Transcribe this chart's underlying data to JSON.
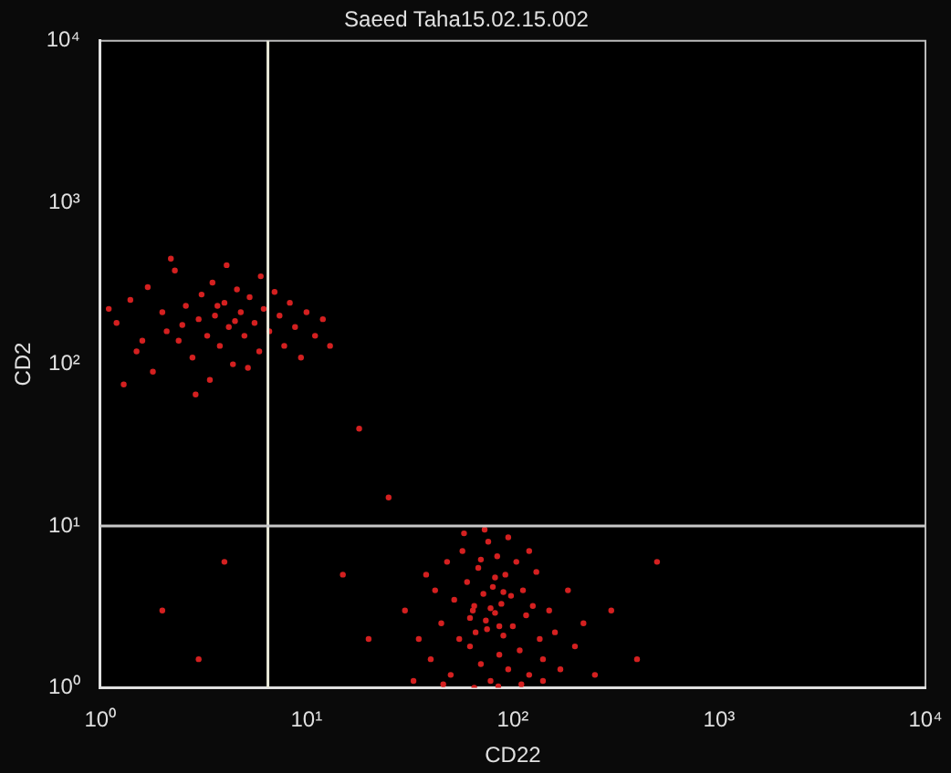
{
  "chart_data": {
    "type": "scatter",
    "title": "Saeed Taha15.02.15.002",
    "xlabel": "CD22",
    "ylabel": "CD2",
    "log": "xy",
    "grid": false,
    "marker": "circle",
    "xlim": [
      1,
      10000
    ],
    "ylim": [
      1,
      10000
    ],
    "xticks": [
      {
        "value": 1,
        "label": "10⁰"
      },
      {
        "value": 10,
        "label": "10¹"
      },
      {
        "value": 100,
        "label": "10²"
      },
      {
        "value": 1000,
        "label": "10³"
      },
      {
        "value": 10000,
        "label": "10⁴"
      }
    ],
    "yticks": [
      {
        "value": 1,
        "label": "10⁰"
      },
      {
        "value": 10,
        "label": "10¹"
      },
      {
        "value": 100,
        "label": "10²"
      },
      {
        "value": 1000,
        "label": "10³"
      },
      {
        "value": 10000,
        "label": "10⁴"
      }
    ],
    "ref_lines": [
      {
        "axis": "x",
        "value": 6.5,
        "color": "#e8e8d8"
      },
      {
        "axis": "y",
        "value": 10,
        "color": "#c8c8c8"
      }
    ],
    "series": [
      {
        "color": "#d42020",
        "x": [
          1.2,
          1.4,
          1.5,
          1.7,
          1.8,
          2.0,
          2.1,
          2.3,
          2.4,
          2.6,
          2.8,
          3.0,
          3.1,
          3.3,
          3.5,
          3.6,
          3.8,
          4.0,
          4.2,
          4.4,
          4.6,
          4.8,
          5.0,
          5.3,
          5.6,
          5.9,
          6.2,
          6.6,
          7.0,
          7.4,
          7.8,
          8.3,
          8.8,
          9.4,
          10,
          11,
          12,
          13,
          1.3,
          2.2,
          3.4,
          4.1,
          2.9,
          1.6,
          5.2,
          6.0,
          1.1,
          3.7,
          2.5,
          4.5,
          30,
          35,
          38,
          40,
          42,
          45,
          48,
          50,
          52,
          55,
          57,
          60,
          62,
          64,
          66,
          68,
          70,
          72,
          74,
          76,
          78,
          80,
          82,
          84,
          86,
          88,
          90,
          92,
          95,
          98,
          100,
          104,
          108,
          112,
          116,
          120,
          125,
          130,
          135,
          140,
          150,
          160,
          170,
          185,
          200,
          220,
          250,
          33,
          46,
          65,
          85,
          110,
          140,
          58,
          73,
          95,
          120,
          65,
          75,
          82,
          70,
          90,
          62,
          78,
          86,
          2,
          4,
          15,
          20,
          300,
          400,
          25,
          18,
          500,
          3
        ],
        "values": [
          180,
          250,
          120,
          300,
          90,
          210,
          160,
          380,
          140,
          230,
          110,
          190,
          270,
          150,
          320,
          200,
          130,
          240,
          170,
          100,
          290,
          210,
          150,
          260,
          180,
          120,
          220,
          160,
          280,
          200,
          130,
          240,
          170,
          110,
          210,
          150,
          190,
          130,
          75,
          450,
          80,
          410,
          65,
          140,
          95,
          350,
          220,
          230,
          175,
          185,
          3,
          2,
          5,
          1.5,
          4,
          2.5,
          6,
          1.2,
          3.5,
          2,
          7,
          4.5,
          1.8,
          3,
          2.2,
          5.5,
          1.4,
          3.8,
          2.6,
          8,
          1.1,
          4.2,
          2.9,
          6.5,
          1.6,
          3.3,
          2.1,
          5,
          1.3,
          3.7,
          2.4,
          6,
          1.7,
          4,
          2.8,
          1.2,
          3.2,
          5.2,
          2,
          1.5,
          3,
          2.2,
          1.3,
          4,
          1.8,
          2.5,
          1.2,
          1.1,
          1.05,
          1.0,
          1.02,
          1.05,
          1.1,
          9,
          9.5,
          8.5,
          7,
          3.2,
          2.3,
          4.8,
          6.2,
          3.9,
          2.7,
          3.1,
          2.4,
          3,
          6,
          5,
          2,
          3,
          1.5,
          15,
          40,
          6,
          1.5
        ]
      }
    ]
  }
}
